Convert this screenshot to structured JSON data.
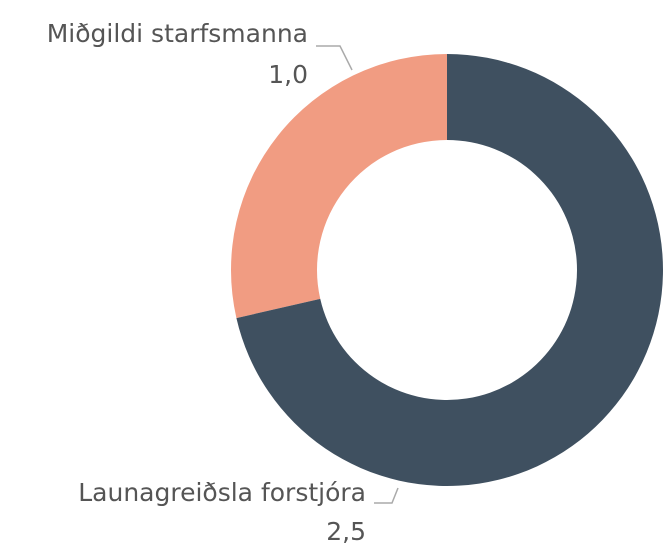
{
  "chart_data": {
    "type": "donut",
    "categories": [
      "Launagreiðsla forstjóra",
      "Miðgildi starfsmanna"
    ],
    "values": [
      2.5,
      1.0
    ],
    "value_labels": [
      "2,5",
      "1,0"
    ],
    "colors": [
      "#3f5060",
      "#f19c82"
    ]
  }
}
